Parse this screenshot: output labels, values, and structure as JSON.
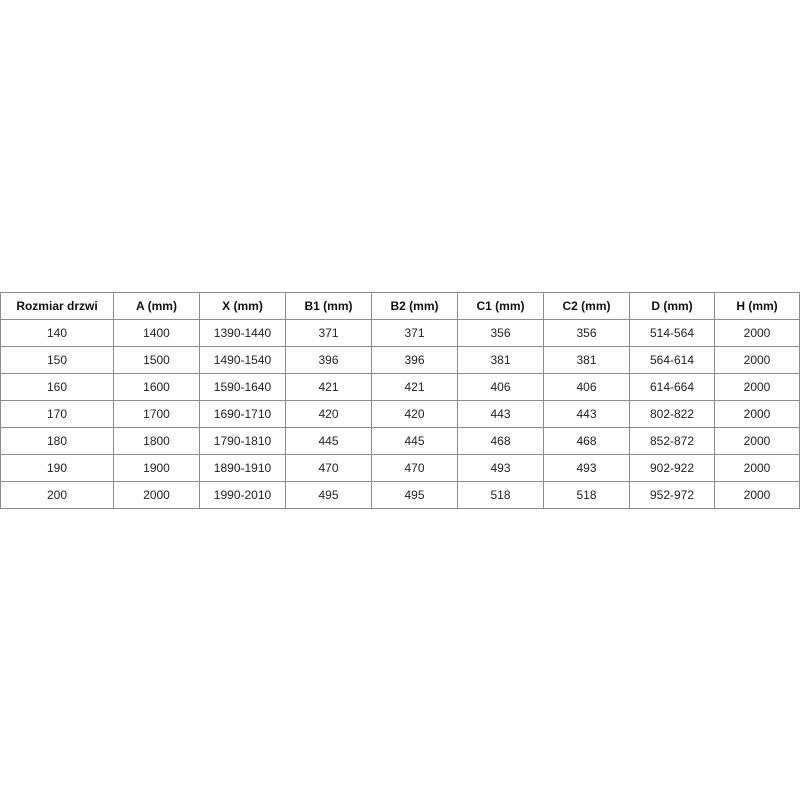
{
  "table": {
    "headers": [
      "Rozmiar drzwi",
      "A (mm)",
      "X (mm)",
      "B1 (mm)",
      "B2 (mm)",
      "C1 (mm)",
      "C2 (mm)",
      "D (mm)",
      "H (mm)"
    ],
    "rows": [
      [
        "140",
        "1400",
        "1390-1440",
        "371",
        "371",
        "356",
        "356",
        "514-564",
        "2000"
      ],
      [
        "150",
        "1500",
        "1490-1540",
        "396",
        "396",
        "381",
        "381",
        "564-614",
        "2000"
      ],
      [
        "160",
        "1600",
        "1590-1640",
        "421",
        "421",
        "406",
        "406",
        "614-664",
        "2000"
      ],
      [
        "170",
        "1700",
        "1690-1710",
        "420",
        "420",
        "443",
        "443",
        "802-822",
        "2000"
      ],
      [
        "180",
        "1800",
        "1790-1810",
        "445",
        "445",
        "468",
        "468",
        "852-872",
        "2000"
      ],
      [
        "190",
        "1900",
        "1890-1910",
        "470",
        "470",
        "493",
        "493",
        "902-922",
        "2000"
      ],
      [
        "200",
        "2000",
        "1990-2010",
        "495",
        "495",
        "518",
        "518",
        "952-972",
        "2000"
      ]
    ]
  }
}
